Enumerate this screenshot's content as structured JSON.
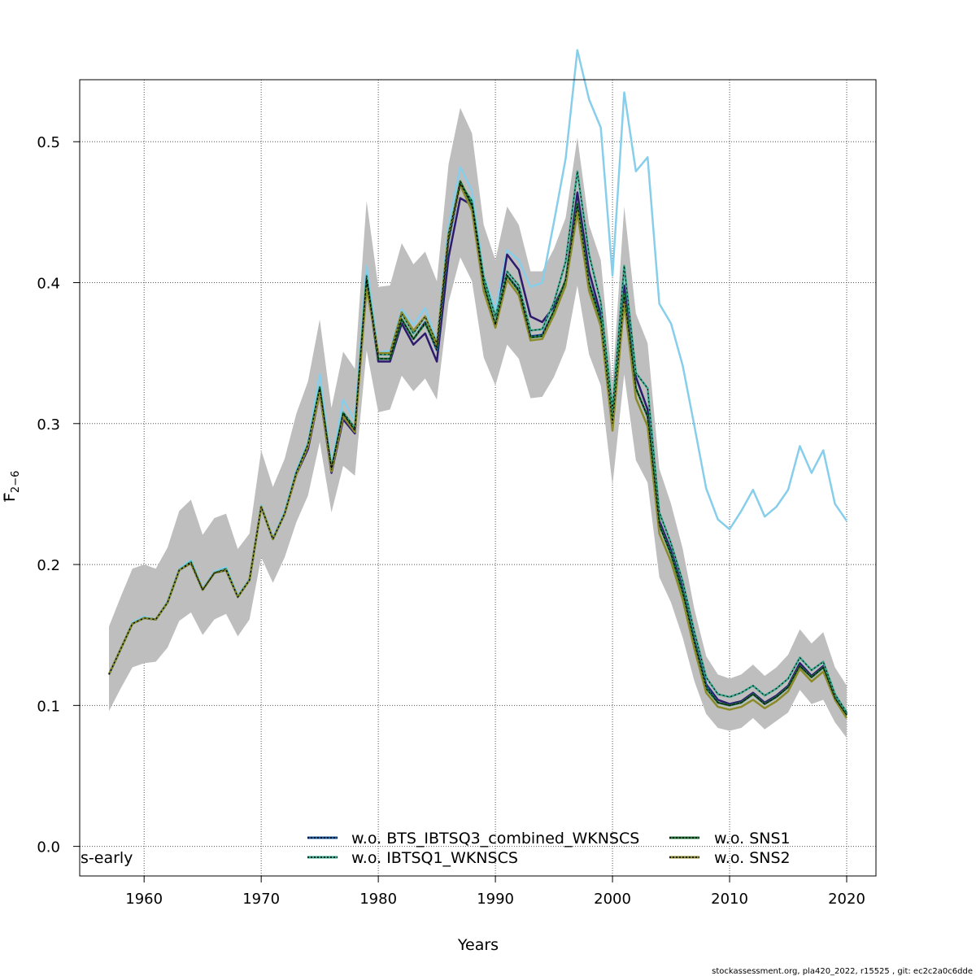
{
  "chart_data": {
    "type": "line",
    "xlabel": "Years",
    "ylabel_main": "F",
    "ylabel_sub": "2−6",
    "corner_label": "s-early",
    "footer": "stockassessment.org, pla420_2022, r15525 , git: ec2c2a0c6dde",
    "xlim": [
      1954.5,
      2022.5
    ],
    "ylim": [
      -0.021,
      0.544
    ],
    "xticks": [
      1960,
      1970,
      1980,
      1990,
      2000,
      2010,
      2020
    ],
    "yticks": [
      0.0,
      0.1,
      0.2,
      0.3,
      0.4,
      0.5
    ],
    "ytick_labels": [
      "0.0",
      "0.1",
      "0.2",
      "0.3",
      "0.4",
      "0.5"
    ],
    "grid": true,
    "legend_position": "bottom",
    "x": [
      1957,
      1958,
      1959,
      1960,
      1961,
      1962,
      1963,
      1964,
      1965,
      1966,
      1967,
      1968,
      1969,
      1970,
      1971,
      1972,
      1973,
      1974,
      1975,
      1976,
      1977,
      1978,
      1979,
      1980,
      1981,
      1982,
      1983,
      1984,
      1985,
      1986,
      1987,
      1988,
      1989,
      1990,
      1991,
      1992,
      1993,
      1994,
      1995,
      1996,
      1997,
      1998,
      1999,
      2000,
      2001,
      2002,
      2003,
      2004,
      2005,
      2006,
      2007,
      2008,
      2009,
      2010,
      2011,
      2012,
      2013,
      2014,
      2015,
      2016,
      2017,
      2018,
      2019,
      2020
    ],
    "confidence_band": {
      "color": "#bebebe",
      "lower": [
        0.096,
        0.112,
        0.127,
        0.13,
        0.131,
        0.141,
        0.16,
        0.166,
        0.15,
        0.161,
        0.165,
        0.149,
        0.161,
        0.205,
        0.187,
        0.205,
        0.23,
        0.249,
        0.287,
        0.237,
        0.27,
        0.263,
        0.352,
        0.308,
        0.31,
        0.334,
        0.323,
        0.332,
        0.317,
        0.386,
        0.418,
        0.401,
        0.347,
        0.327,
        0.356,
        0.346,
        0.318,
        0.319,
        0.333,
        0.353,
        0.398,
        0.349,
        0.327,
        0.256,
        0.335,
        0.274,
        0.258,
        0.191,
        0.173,
        0.148,
        0.117,
        0.094,
        0.084,
        0.082,
        0.084,
        0.091,
        0.083,
        0.089,
        0.095,
        0.111,
        0.101,
        0.104,
        0.088,
        0.077
      ],
      "upper": [
        0.156,
        0.177,
        0.197,
        0.2,
        0.197,
        0.212,
        0.238,
        0.246,
        0.221,
        0.233,
        0.236,
        0.211,
        0.222,
        0.281,
        0.255,
        0.275,
        0.307,
        0.33,
        0.374,
        0.311,
        0.351,
        0.339,
        0.458,
        0.397,
        0.398,
        0.428,
        0.413,
        0.422,
        0.401,
        0.484,
        0.524,
        0.506,
        0.441,
        0.416,
        0.454,
        0.441,
        0.408,
        0.408,
        0.424,
        0.446,
        0.503,
        0.441,
        0.416,
        0.328,
        0.454,
        0.378,
        0.357,
        0.268,
        0.243,
        0.211,
        0.168,
        0.135,
        0.122,
        0.119,
        0.122,
        0.129,
        0.121,
        0.127,
        0.136,
        0.154,
        0.144,
        0.152,
        0.127,
        0.114
      ]
    },
    "series": [
      {
        "name": "",
        "color": "#87ceeb",
        "values": [
          0.122,
          0.14,
          0.159,
          0.163,
          0.161,
          0.174,
          0.197,
          0.203,
          0.183,
          0.195,
          0.198,
          0.178,
          0.19,
          0.242,
          0.219,
          0.238,
          0.267,
          0.287,
          0.335,
          0.27,
          0.317,
          0.302,
          0.412,
          0.35,
          0.352,
          0.381,
          0.37,
          0.382,
          0.358,
          0.44,
          0.482,
          0.465,
          0.405,
          0.381,
          0.423,
          0.416,
          0.397,
          0.4,
          0.443,
          0.488,
          0.565,
          0.53,
          0.51,
          0.405,
          0.535,
          0.479,
          0.489,
          0.385,
          0.371,
          0.341,
          0.298,
          0.254,
          0.232,
          0.225,
          0.238,
          0.253,
          0.234,
          0.241,
          0.253,
          0.284,
          0.265,
          0.281,
          0.243,
          0.231
        ]
      },
      {
        "name": "",
        "color": "#2d1a6e",
        "values": [
          0.122,
          0.14,
          0.158,
          0.162,
          0.161,
          0.173,
          0.196,
          0.201,
          0.182,
          0.194,
          0.196,
          0.177,
          0.189,
          0.241,
          0.218,
          0.236,
          0.264,
          0.282,
          0.322,
          0.265,
          0.303,
          0.293,
          0.402,
          0.344,
          0.344,
          0.371,
          0.356,
          0.364,
          0.344,
          0.418,
          0.46,
          0.455,
          0.397,
          0.369,
          0.42,
          0.409,
          0.376,
          0.372,
          0.383,
          0.401,
          0.464,
          0.408,
          0.377,
          0.297,
          0.398,
          0.333,
          0.31,
          0.231,
          0.21,
          0.183,
          0.146,
          0.115,
          0.104,
          0.101,
          0.103,
          0.109,
          0.102,
          0.107,
          0.114,
          0.13,
          0.121,
          0.128,
          0.106,
          0.094
        ]
      },
      {
        "name": "w.o. BTS_IBTSQ3_combined_WKNSCS",
        "color": "#1a5a9e",
        "values": [
          0.122,
          0.14,
          0.158,
          0.162,
          0.161,
          0.173,
          0.196,
          0.201,
          0.182,
          0.194,
          0.196,
          0.177,
          0.189,
          0.241,
          0.218,
          0.236,
          0.265,
          0.285,
          0.325,
          0.267,
          0.307,
          0.295,
          0.402,
          0.346,
          0.346,
          0.374,
          0.36,
          0.372,
          0.352,
          0.43,
          0.47,
          0.455,
          0.398,
          0.37,
          0.405,
          0.395,
          0.362,
          0.363,
          0.38,
          0.402,
          0.455,
          0.4,
          0.374,
          0.3,
          0.39,
          0.325,
          0.305,
          0.228,
          0.208,
          0.181,
          0.145,
          0.114,
          0.102,
          0.1,
          0.102,
          0.108,
          0.101,
          0.106,
          0.113,
          0.128,
          0.12,
          0.127,
          0.105,
          0.093
        ]
      },
      {
        "name": "w.o. IBTSQ1_WKNSCS",
        "color": "#3aa88e",
        "values": [
          0.122,
          0.14,
          0.158,
          0.162,
          0.161,
          0.173,
          0.196,
          0.202,
          0.182,
          0.194,
          0.197,
          0.177,
          0.189,
          0.241,
          0.218,
          0.236,
          0.265,
          0.285,
          0.326,
          0.268,
          0.308,
          0.297,
          0.405,
          0.349,
          0.349,
          0.378,
          0.364,
          0.376,
          0.357,
          0.435,
          0.47,
          0.458,
          0.404,
          0.376,
          0.408,
          0.398,
          0.366,
          0.367,
          0.386,
          0.415,
          0.479,
          0.42,
          0.386,
          0.31,
          0.412,
          0.336,
          0.325,
          0.237,
          0.215,
          0.188,
          0.152,
          0.12,
          0.108,
          0.106,
          0.109,
          0.114,
          0.107,
          0.112,
          0.119,
          0.134,
          0.125,
          0.131,
          0.108,
          0.095
        ]
      },
      {
        "name": "w.o. SNS1",
        "color": "#1e7a3a",
        "values": [
          0.122,
          0.14,
          0.158,
          0.162,
          0.161,
          0.173,
          0.196,
          0.201,
          0.182,
          0.194,
          0.196,
          0.177,
          0.189,
          0.241,
          0.218,
          0.236,
          0.265,
          0.285,
          0.325,
          0.268,
          0.307,
          0.295,
          0.402,
          0.346,
          0.346,
          0.374,
          0.36,
          0.371,
          0.354,
          0.432,
          0.472,
          0.455,
          0.399,
          0.37,
          0.405,
          0.394,
          0.361,
          0.362,
          0.38,
          0.402,
          0.456,
          0.399,
          0.373,
          0.3,
          0.392,
          0.325,
          0.305,
          0.228,
          0.207,
          0.18,
          0.144,
          0.112,
          0.102,
          0.1,
          0.102,
          0.108,
          0.101,
          0.106,
          0.113,
          0.128,
          0.12,
          0.127,
          0.105,
          0.093
        ]
      },
      {
        "name": "w.o. SNS2",
        "color": "#8a8a2a",
        "values": [
          0.122,
          0.14,
          0.158,
          0.162,
          0.161,
          0.173,
          0.196,
          0.201,
          0.182,
          0.194,
          0.196,
          0.177,
          0.189,
          0.241,
          0.218,
          0.236,
          0.264,
          0.284,
          0.322,
          0.266,
          0.305,
          0.294,
          0.396,
          0.35,
          0.35,
          0.379,
          0.366,
          0.376,
          0.356,
          0.434,
          0.469,
          0.451,
          0.394,
          0.368,
          0.402,
          0.391,
          0.359,
          0.36,
          0.377,
          0.398,
          0.45,
          0.394,
          0.369,
          0.295,
          0.386,
          0.318,
          0.298,
          0.222,
          0.202,
          0.175,
          0.14,
          0.109,
          0.099,
          0.097,
          0.099,
          0.104,
          0.098,
          0.103,
          0.11,
          0.126,
          0.117,
          0.124,
          0.104,
          0.091
        ]
      }
    ]
  }
}
